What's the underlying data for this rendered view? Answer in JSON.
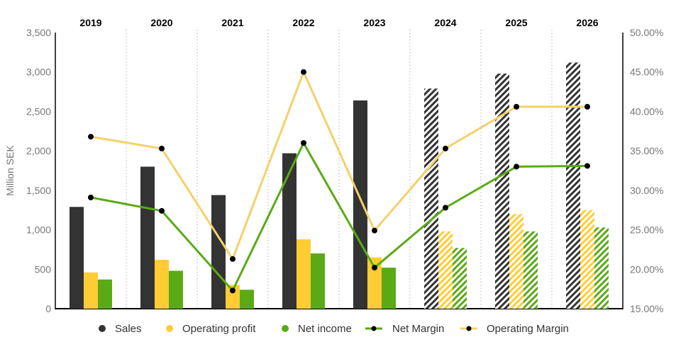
{
  "chart_data": {
    "type": "bar",
    "categories": [
      "2019",
      "2020",
      "2021",
      "2022",
      "2023",
      "2024",
      "2025",
      "2026"
    ],
    "forecast_from": "2024",
    "ylabel": "Million SEK",
    "ylim": [
      0,
      3500
    ],
    "y_ticks": [
      "0",
      "500",
      "1,000",
      "1,500",
      "2,000",
      "2,500",
      "3,000",
      "3,500"
    ],
    "y2lim": [
      15,
      50
    ],
    "y2_ticks": [
      "15.00%",
      "20.00%",
      "25.00%",
      "30.00%",
      "35.00%",
      "40.00%",
      "45.00%",
      "50.00%"
    ],
    "grid": "vertical dotted separators",
    "legend_position": "bottom",
    "series": [
      {
        "name": "Sales",
        "kind": "bar",
        "axis": "left",
        "color": "#333333",
        "values": [
          1290,
          1800,
          1440,
          1970,
          2640,
          2790,
          2980,
          3120
        ]
      },
      {
        "name": "Operating profit",
        "kind": "bar",
        "axis": "left",
        "color": "#ffcc33",
        "values": [
          460,
          620,
          300,
          880,
          650,
          980,
          1200,
          1250
        ]
      },
      {
        "name": "Net income",
        "kind": "bar",
        "axis": "left",
        "color": "#5aaa16",
        "values": [
          370,
          480,
          240,
          700,
          520,
          770,
          980,
          1030
        ]
      },
      {
        "name": "Net Margin",
        "kind": "line",
        "axis": "right",
        "color": "#5aaa16",
        "values": [
          29.1,
          27.4,
          17.3,
          36.0,
          20.2,
          27.8,
          33.0,
          33.1
        ]
      },
      {
        "name": "Operating Margin",
        "kind": "line",
        "axis": "right",
        "color": "#f5d06a",
        "values": [
          36.8,
          35.3,
          21.3,
          45.0,
          24.9,
          35.3,
          40.6,
          40.6
        ]
      }
    ]
  }
}
